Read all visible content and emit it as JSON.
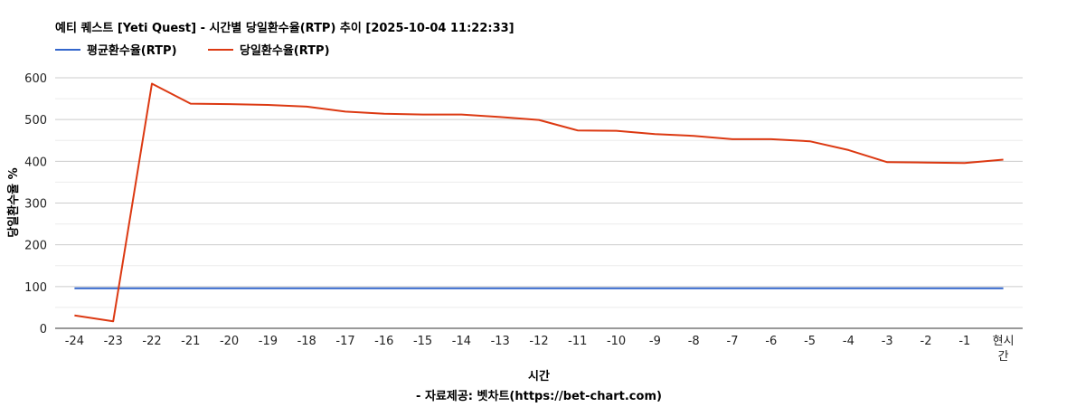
{
  "chart_data": {
    "type": "line",
    "title": "예티 퀘스트 [Yeti Quest] - 시간별 당일환수율(RTP) 추이 [2025-10-04 11:22:33]",
    "xlabel": "시간",
    "ylabel": "당일환수율 %",
    "footer": "- 자료제공: 벳차트(https://bet-chart.com)",
    "legend_position": "top-left",
    "grid": true,
    "ylim": [
      0,
      600
    ],
    "yticks": [
      "0",
      "100",
      "200",
      "300",
      "400",
      "500",
      "600"
    ],
    "categories": [
      "-24",
      "-23",
      "-22",
      "-21",
      "-20",
      "-19",
      "-18",
      "-17",
      "-16",
      "-15",
      "-14",
      "-13",
      "-12",
      "-11",
      "-10",
      "-9",
      "-8",
      "-7",
      "-6",
      "-5",
      "-4",
      "-3",
      "-2",
      "-1",
      "현시간"
    ],
    "series": [
      {
        "name": "평균환수율(RTP)",
        "color": "#3366cc",
        "values": [
          96,
          96,
          96,
          96,
          96,
          96,
          96,
          96,
          96,
          96,
          96,
          96,
          96,
          96,
          96,
          96,
          96,
          96,
          96,
          96,
          96,
          96,
          96,
          96,
          96
        ]
      },
      {
        "name": "당일환수율(RTP)",
        "color": "#dc3912",
        "values": [
          31,
          17,
          586,
          538,
          537,
          535,
          531,
          519,
          514,
          512,
          512,
          506,
          499,
          474,
          473,
          465,
          461,
          453,
          453,
          448,
          427,
          398,
          397,
          396,
          404
        ]
      }
    ]
  }
}
